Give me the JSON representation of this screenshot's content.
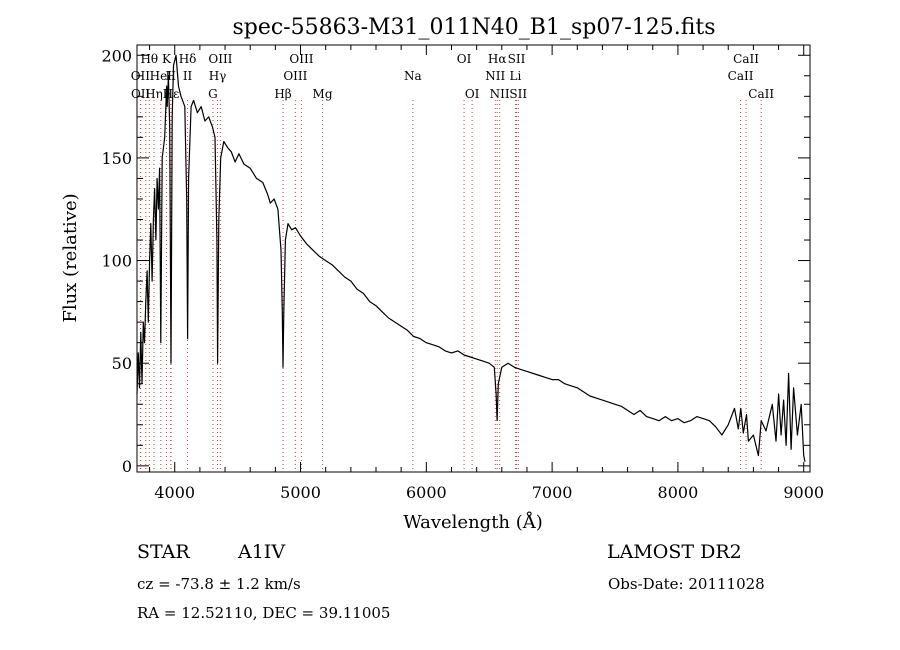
{
  "chart_data": {
    "type": "line",
    "title": "spec-55863-M31_011N40_B1_sp07-125.fits",
    "xlabel": "Wavelength (Å)",
    "ylabel": "Flux (relative)",
    "xlim": [
      3700,
      9050
    ],
    "ylim": [
      -3,
      205
    ],
    "x_ticks": [
      4000,
      5000,
      6000,
      7000,
      8000,
      9000
    ],
    "y_ticks": [
      0,
      50,
      100,
      150,
      200
    ],
    "series": [
      {
        "points": [
          [
            3700,
            35
          ],
          [
            3710,
            55
          ],
          [
            3720,
            38
          ],
          [
            3730,
            65
          ],
          [
            3740,
            40
          ],
          [
            3750,
            70
          ],
          [
            3760,
            60
          ],
          [
            3770,
            80
          ],
          [
            3780,
            95
          ],
          [
            3790,
            70
          ],
          [
            3800,
            100
          ],
          [
            3810,
            118
          ],
          [
            3820,
            90
          ],
          [
            3830,
            120
          ],
          [
            3840,
            135
          ],
          [
            3850,
            110
          ],
          [
            3860,
            140
          ],
          [
            3870,
            125
          ],
          [
            3880,
            145
          ],
          [
            3889,
            60
          ],
          [
            3900,
            150
          ],
          [
            3920,
            160
          ],
          [
            3935,
            185
          ],
          [
            3940,
            175
          ],
          [
            3950,
            190
          ],
          [
            3960,
            165
          ],
          [
            3970,
            50
          ],
          [
            3980,
            170
          ],
          [
            3990,
            195
          ],
          [
            4010,
            200
          ],
          [
            4030,
            185
          ],
          [
            4050,
            180
          ],
          [
            4080,
            175
          ],
          [
            4095,
            130
          ],
          [
            4102,
            62
          ],
          [
            4110,
            140
          ],
          [
            4130,
            175
          ],
          [
            4150,
            178
          ],
          [
            4180,
            172
          ],
          [
            4210,
            175
          ],
          [
            4240,
            168
          ],
          [
            4270,
            170
          ],
          [
            4300,
            165
          ],
          [
            4320,
            160
          ],
          [
            4335,
            110
          ],
          [
            4341,
            50
          ],
          [
            4350,
            120
          ],
          [
            4365,
            150
          ],
          [
            4390,
            158
          ],
          [
            4420,
            155
          ],
          [
            4450,
            153
          ],
          [
            4480,
            148
          ],
          [
            4510,
            152
          ],
          [
            4550,
            147
          ],
          [
            4600,
            145
          ],
          [
            4650,
            140
          ],
          [
            4700,
            138
          ],
          [
            4740,
            132
          ],
          [
            4760,
            128
          ],
          [
            4790,
            130
          ],
          [
            4820,
            125
          ],
          [
            4845,
            105
          ],
          [
            4855,
            75
          ],
          [
            4861,
            48
          ],
          [
            4867,
            75
          ],
          [
            4880,
            110
          ],
          [
            4900,
            118
          ],
          [
            4930,
            115
          ],
          [
            4960,
            116
          ],
          [
            5000,
            112
          ],
          [
            5050,
            108
          ],
          [
            5100,
            105
          ],
          [
            5150,
            102
          ],
          [
            5200,
            100
          ],
          [
            5250,
            98
          ],
          [
            5300,
            95
          ],
          [
            5350,
            92
          ],
          [
            5400,
            90
          ],
          [
            5450,
            86
          ],
          [
            5500,
            84
          ],
          [
            5550,
            80
          ],
          [
            5600,
            78
          ],
          [
            5650,
            75
          ],
          [
            5700,
            72
          ],
          [
            5750,
            70
          ],
          [
            5800,
            68
          ],
          [
            5850,
            66
          ],
          [
            5900,
            63
          ],
          [
            5950,
            62
          ],
          [
            6000,
            60
          ],
          [
            6050,
            59
          ],
          [
            6100,
            58
          ],
          [
            6150,
            56
          ],
          [
            6200,
            55
          ],
          [
            6250,
            56
          ],
          [
            6300,
            54
          ],
          [
            6350,
            53
          ],
          [
            6400,
            52
          ],
          [
            6450,
            51
          ],
          [
            6500,
            50
          ],
          [
            6540,
            48
          ],
          [
            6555,
            35
          ],
          [
            6563,
            22
          ],
          [
            6572,
            40
          ],
          [
            6600,
            48
          ],
          [
            6650,
            50
          ],
          [
            6700,
            48
          ],
          [
            6750,
            47
          ],
          [
            6800,
            46
          ],
          [
            6850,
            45
          ],
          [
            6900,
            44
          ],
          [
            6950,
            43
          ],
          [
            7000,
            42
          ],
          [
            7050,
            42
          ],
          [
            7100,
            40
          ],
          [
            7150,
            39
          ],
          [
            7200,
            38
          ],
          [
            7250,
            36
          ],
          [
            7300,
            34
          ],
          [
            7350,
            33
          ],
          [
            7400,
            32
          ],
          [
            7450,
            31
          ],
          [
            7500,
            30
          ],
          [
            7550,
            29
          ],
          [
            7600,
            27
          ],
          [
            7650,
            25
          ],
          [
            7700,
            27
          ],
          [
            7750,
            24
          ],
          [
            7800,
            23
          ],
          [
            7850,
            22
          ],
          [
            7900,
            24
          ],
          [
            7950,
            22
          ],
          [
            8000,
            23
          ],
          [
            8050,
            21
          ],
          [
            8100,
            22
          ],
          [
            8150,
            24
          ],
          [
            8200,
            23
          ],
          [
            8250,
            22
          ],
          [
            8300,
            19
          ],
          [
            8350,
            15
          ],
          [
            8400,
            20
          ],
          [
            8450,
            28
          ],
          [
            8480,
            18
          ],
          [
            8500,
            28
          ],
          [
            8520,
            16
          ],
          [
            8545,
            25
          ],
          [
            8560,
            12
          ],
          [
            8600,
            15
          ],
          [
            8640,
            5
          ],
          [
            8662,
            22
          ],
          [
            8700,
            17
          ],
          [
            8750,
            30
          ],
          [
            8780,
            12
          ],
          [
            8800,
            35
          ],
          [
            8820,
            15
          ],
          [
            8840,
            32
          ],
          [
            8860,
            10
          ],
          [
            8880,
            45
          ],
          [
            8900,
            8
          ],
          [
            8920,
            38
          ],
          [
            8950,
            15
          ],
          [
            8980,
            30
          ],
          [
            9000,
            5
          ],
          [
            9010,
            2
          ]
        ]
      }
    ],
    "line_groups": [
      {
        "row": 1,
        "labels": [
          {
            "text": "Hθ",
            "x": 3798
          },
          {
            "text": "K",
            "x": 3934
          },
          {
            "text": "Hδ",
            "x": 4102
          },
          {
            "text": "OIII",
            "x": 4363
          },
          {
            "text": "OIII",
            "x": 5007
          },
          {
            "text": "OI",
            "x": 6300
          },
          {
            "text": "Hα",
            "x": 6563
          },
          {
            "text": "SII",
            "x": 6717
          },
          {
            "text": "CaII",
            "x": 8542
          }
        ]
      },
      {
        "row": 2,
        "labels": [
          {
            "text": "OII",
            "x": 3727
          },
          {
            "text": "HeI",
            "x": 3889
          },
          {
            "text": "H",
            "x": 3968
          },
          {
            "text": "II",
            "x": 4102
          },
          {
            "text": "Hγ",
            "x": 4340
          },
          {
            "text": "OIII",
            "x": 4959
          },
          {
            "text": "Na",
            "x": 5893
          },
          {
            "text": "NII",
            "x": 6548
          },
          {
            "text": "Li",
            "x": 6708
          },
          {
            "text": "CaII",
            "x": 8498
          }
        ]
      },
      {
        "row": 3,
        "labels": [
          {
            "text": "OII",
            "x": 3729
          },
          {
            "text": "Hη",
            "x": 3835
          },
          {
            "text": "Hε",
            "x": 3970
          },
          {
            "text": "G",
            "x": 4304
          },
          {
            "text": "Hβ",
            "x": 4861
          },
          {
            "text": "Mg",
            "x": 5175
          },
          {
            "text": "OI",
            "x": 6364
          },
          {
            "text": "NII",
            "x": 6583
          },
          {
            "text": "SII",
            "x": 6731
          },
          {
            "text": "CaII",
            "x": 8662
          }
        ]
      }
    ],
    "line_markers": [
      3727,
      3729,
      3770,
      3798,
      3835,
      3889,
      3934,
      3968,
      3970,
      4102,
      4304,
      4340,
      4363,
      4861,
      4959,
      5007,
      5175,
      5893,
      6300,
      6364,
      6548,
      6563,
      6583,
      6708,
      6717,
      6731,
      8498,
      8542,
      8662
    ],
    "line_color": "#000000",
    "marker_color": "#d04040"
  },
  "info": {
    "object_class": "STAR",
    "subclass": "A1IV",
    "survey": "LAMOST DR2",
    "redshift": "cz = -73.8 ± 1.2 km/s",
    "obs_date": "Obs-Date: 20111028",
    "coords": "RA =  12.52110, DEC =  39.11005"
  }
}
